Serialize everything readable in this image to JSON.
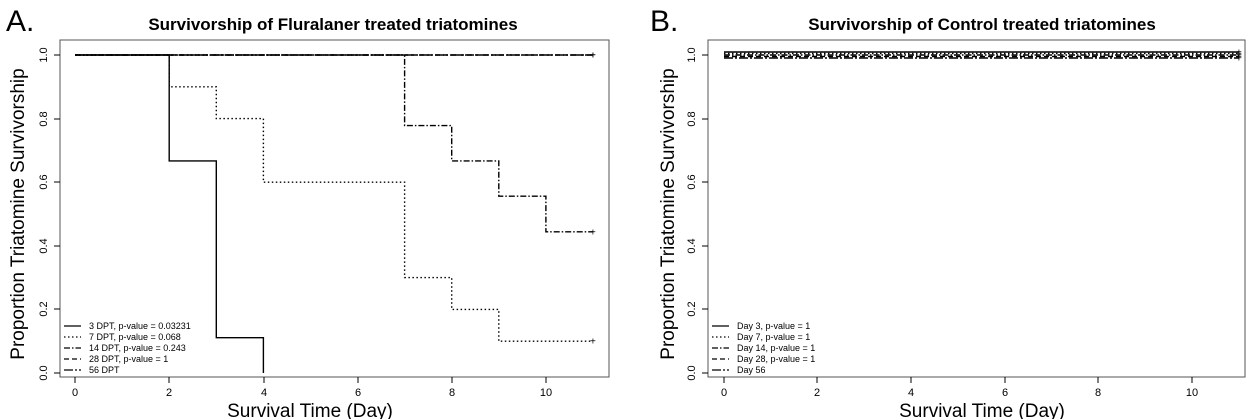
{
  "chart_data": [
    {
      "type": "line",
      "step": true,
      "panel_label": "A.",
      "title": "Survivorship of Fluralaner treated triatomines",
      "xlabel": "Survival Time (Day)",
      "ylabel": "Proportion Triatomine Survivorship",
      "xlim": [
        0,
        11
      ],
      "ylim": [
        0,
        1
      ],
      "xticks": [
        "0",
        "2",
        "4",
        "6",
        "8",
        "10"
      ],
      "yticks": [
        "0.0",
        "0.2",
        "0.4",
        "0.6",
        "0.8",
        "1.0"
      ],
      "grid": false,
      "legend_position": "bottom-left",
      "series": [
        {
          "name": "3 DPT, p-value = 0.03231",
          "dash": "solid",
          "points": [
            [
              0,
              1.0
            ],
            [
              2,
              1.0
            ],
            [
              2,
              0.667
            ],
            [
              3,
              0.667
            ],
            [
              3,
              0.111
            ],
            [
              4,
              0.111
            ],
            [
              4,
              0.0
            ]
          ]
        },
        {
          "name": "7 DPT, p-value = 0.068",
          "dash": "dotted",
          "points": [
            [
              0,
              1.0
            ],
            [
              2,
              1.0
            ],
            [
              2,
              0.9
            ],
            [
              3,
              0.9
            ],
            [
              3,
              0.8
            ],
            [
              4,
              0.8
            ],
            [
              4,
              0.6
            ],
            [
              7,
              0.6
            ],
            [
              7,
              0.3
            ],
            [
              8,
              0.3
            ],
            [
              8,
              0.2
            ],
            [
              9,
              0.2
            ],
            [
              9,
              0.1
            ],
            [
              11,
              0.1
            ]
          ]
        },
        {
          "name": "14 DPT, p-value = 0.243",
          "dash": "dashdot",
          "points": [
            [
              0,
              1.0
            ],
            [
              7,
              1.0
            ],
            [
              7,
              0.778
            ],
            [
              8,
              0.778
            ],
            [
              8,
              0.667
            ],
            [
              9,
              0.667
            ],
            [
              9,
              0.556
            ],
            [
              10,
              0.556
            ],
            [
              10,
              0.444
            ],
            [
              11,
              0.444
            ]
          ]
        },
        {
          "name": "28 DPT, p-value = 1",
          "dash": "dashed",
          "points": [
            [
              0,
              1.0
            ],
            [
              11,
              1.0
            ]
          ]
        },
        {
          "name": "56 DPT",
          "dash": "longdash",
          "points": [
            [
              0,
              1.0
            ],
            [
              11,
              1.0
            ]
          ]
        }
      ]
    },
    {
      "type": "line",
      "step": true,
      "panel_label": "B.",
      "title": "Survivorship of Control treated triatomines",
      "xlabel": "Survival Time (Day)",
      "ylabel": "Proportion Triatomine Survivorship",
      "xlim": [
        0,
        11
      ],
      "ylim": [
        0,
        1
      ],
      "xticks": [
        "0",
        "2",
        "4",
        "6",
        "8",
        "10"
      ],
      "yticks": [
        "0.0",
        "0.2",
        "0.4",
        "0.6",
        "0.8",
        "1.0"
      ],
      "grid": false,
      "legend_position": "bottom-left",
      "series": [
        {
          "name": "Day 3, p-value = 1",
          "dash": "solid",
          "points": [
            [
              0,
              1.0
            ],
            [
              11,
              1.0
            ]
          ]
        },
        {
          "name": "Day 7, p-value = 1",
          "dash": "dotted",
          "points": [
            [
              0,
              1.0
            ],
            [
              11,
              1.0
            ]
          ]
        },
        {
          "name": "Day 14, p-value = 1",
          "dash": "dashdot",
          "points": [
            [
              0,
              1.0
            ],
            [
              11,
              1.0
            ]
          ]
        },
        {
          "name": "Day 28, p-value = 1",
          "dash": "dashed",
          "points": [
            [
              0,
              1.0
            ],
            [
              11,
              1.0
            ]
          ]
        },
        {
          "name": "Day 56",
          "dash": "longdash",
          "points": [
            [
              0,
              1.0
            ],
            [
              11,
              1.0
            ]
          ]
        }
      ]
    }
  ]
}
